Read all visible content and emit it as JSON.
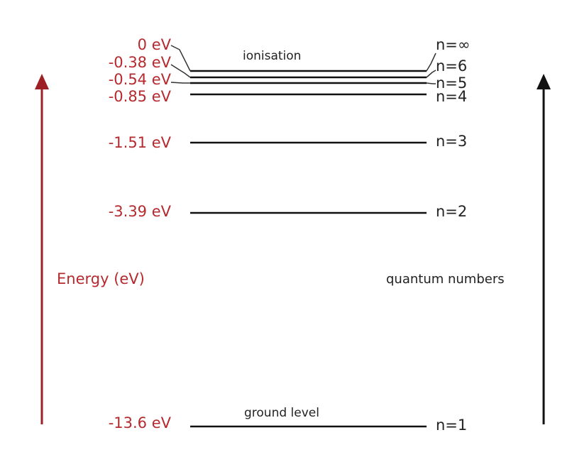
{
  "diagram": {
    "levels": [
      {
        "n": "n=1",
        "energy": "-13.6 eV",
        "note": "ground level"
      },
      {
        "n": "n=2",
        "energy": "-3.39 eV",
        "note": ""
      },
      {
        "n": "n=3",
        "energy": "-1.51 eV",
        "note": ""
      },
      {
        "n": "n=4",
        "energy": "-0.85 eV",
        "note": ""
      },
      {
        "n": "n=5",
        "energy": "-0.54 eV",
        "note": ""
      },
      {
        "n": "n=6",
        "energy": "-0.38 eV",
        "note": ""
      },
      {
        "n": "n=∞",
        "energy": "0 eV",
        "note": "ionisation"
      }
    ],
    "left_axis_label": "Energy (eV)",
    "right_axis_label": "quantum numbers",
    "colors": {
      "energy_red": "#b52a2f",
      "ink": "#111111"
    }
  }
}
